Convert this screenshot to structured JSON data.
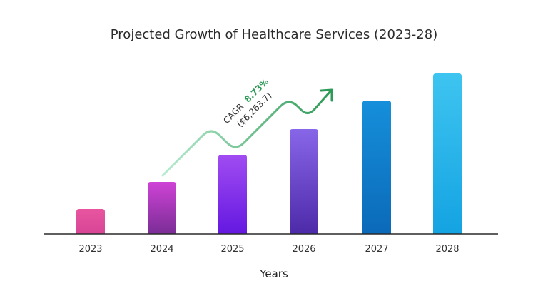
{
  "chart_data": {
    "type": "bar",
    "title": "Projected Growth of Healthcare Services (2023-28)",
    "xlabel": "Years",
    "ylabel": "",
    "categories": [
      "2023",
      "2024",
      "2025",
      "2026",
      "2027",
      "2028"
    ],
    "values": [
      35,
      73,
      111,
      147,
      187,
      225
    ],
    "ylim": [
      0,
      230
    ],
    "grid": false,
    "legend": "none",
    "bar_gradients": [
      [
        "#e8559f",
        "#d84596"
      ],
      [
        "#cf43d6",
        "#7a2d96"
      ],
      [
        "#a14cf2",
        "#6418e0"
      ],
      [
        "#8866e8",
        "#4c2aa8"
      ],
      [
        "#168fda",
        "#0b6ab9"
      ],
      [
        "#3ec4f0",
        "#14a3e2"
      ]
    ],
    "annotation": {
      "cagr_label": "CAGR",
      "cagr_value": "8.73%",
      "market_value": "($6,263.7)",
      "arrow_color": "#2e9a57",
      "arrow_start_color": "#b8ecd0"
    }
  }
}
